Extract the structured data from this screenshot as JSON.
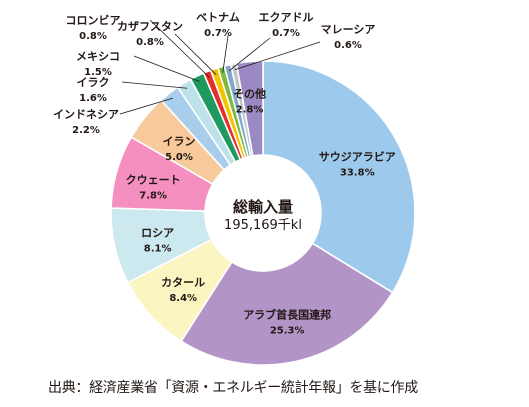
{
  "chart_data": {
    "type": "pie",
    "title": "",
    "center_label": {
      "title": "総輸入量",
      "value": "195,169千kl"
    },
    "slices": [
      {
        "label": "サウジアラビア",
        "value": 33.8,
        "value_label": "33.8%",
        "color": "#9DC9EC"
      },
      {
        "label": "アラブ首長国連邦",
        "value": 25.3,
        "value_label": "25.3%",
        "color": "#B294C7"
      },
      {
        "label": "カタール",
        "value": 8.4,
        "value_label": "8.4%",
        "color": "#FAF5C1"
      },
      {
        "label": "ロシア",
        "value": 8.1,
        "value_label": "8.1%",
        "color": "#CCE9F0"
      },
      {
        "label": "クウェート",
        "value": 7.8,
        "value_label": "7.8%",
        "color": "#F48FC0"
      },
      {
        "label": "イラン",
        "value": 5.0,
        "value_label": "5.0%",
        "color": "#F8C99A"
      },
      {
        "label": "インドネシア",
        "value": 2.2,
        "value_label": "2.2%",
        "color": "#A9CEEC"
      },
      {
        "label": "イラク",
        "value": 1.6,
        "value_label": "1.6%",
        "color": "#BEE2E9"
      },
      {
        "label": "メキシコ",
        "value": 1.5,
        "value_label": "1.5%",
        "color": "#1E9A60"
      },
      {
        "label": "コロンビア",
        "value": 0.8,
        "value_label": "0.8%",
        "color": "#E32E2B"
      },
      {
        "label": "カザフスタン",
        "value": 0.8,
        "value_label": "0.8%",
        "color": "#F6C300"
      },
      {
        "label": "ベトナム",
        "value": 0.7,
        "value_label": "0.7%",
        "color": "#7DB93A"
      },
      {
        "label": "エクアドル",
        "value": 0.7,
        "value_label": "0.7%",
        "color": "#7EA8CC"
      },
      {
        "label": "マレーシア",
        "value": 0.6,
        "value_label": "0.6%",
        "color": "#C1C6CB"
      },
      {
        "label": "その他",
        "value": 2.8,
        "value_label": "2.8%",
        "color": "#9B89C4"
      }
    ]
  },
  "source_note": "出典：経済産業省「資源・エネルギー統計年報」を基に作成"
}
